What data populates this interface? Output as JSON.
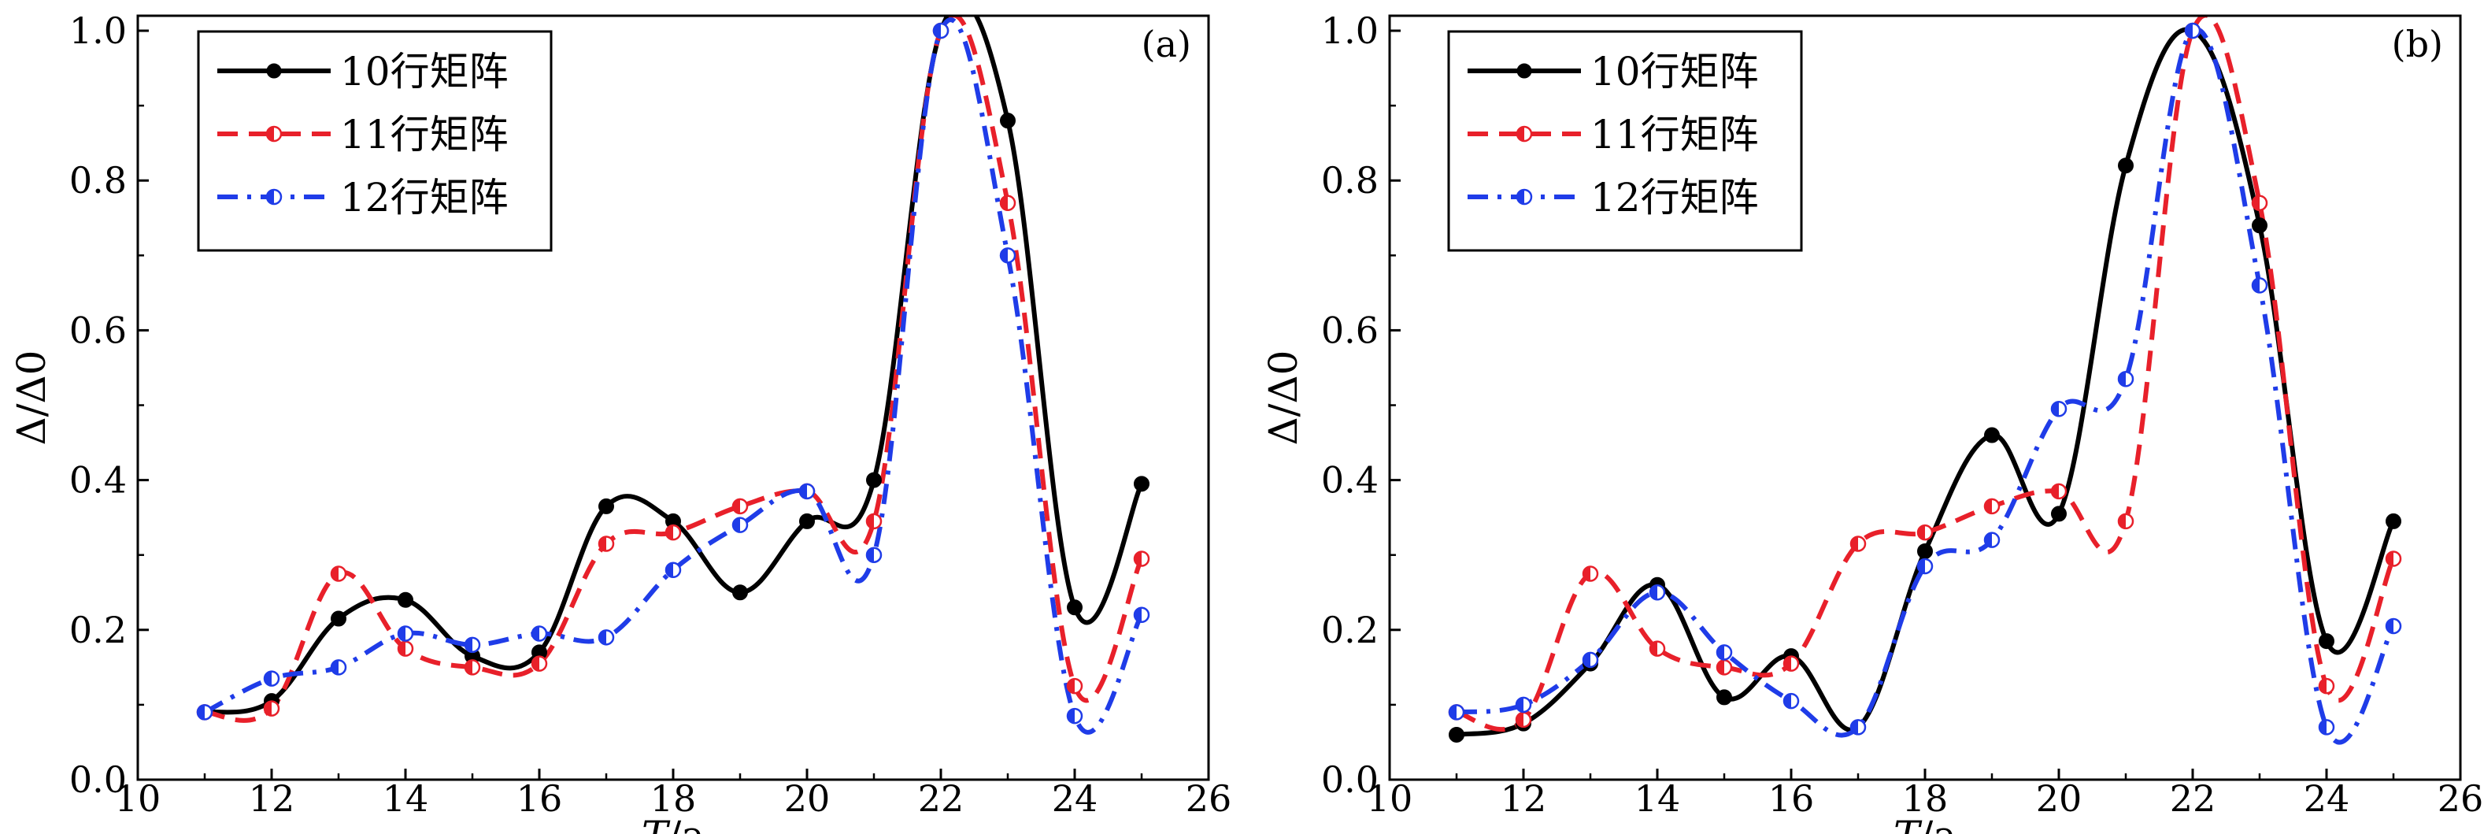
{
  "chart_data": [
    {
      "type": "line",
      "panel_label": "(a)",
      "xlabel_italic": "T",
      "xlabel_unit": "/a",
      "ylabel": "Δ/Δ0",
      "xlim": [
        10,
        26
      ],
      "ylim": [
        0,
        1.02
      ],
      "xticks": [
        10,
        12,
        14,
        16,
        18,
        20,
        22,
        24,
        26
      ],
      "yticks": [
        "0.0",
        "0.2",
        "0.4",
        "0.6",
        "0.8",
        "1.0"
      ],
      "legend_position": "top-left",
      "series": [
        {
          "name": "10行矩阵",
          "color": "#000000",
          "dash": "solid",
          "marker": "filled-circle",
          "x": [
            11,
            12,
            13,
            14,
            15,
            16,
            17,
            18,
            19,
            20,
            21,
            22,
            23,
            24,
            25
          ],
          "values": [
            0.09,
            0.105,
            0.215,
            0.24,
            0.165,
            0.17,
            0.365,
            0.345,
            0.25,
            0.345,
            0.4,
            1.0,
            0.88,
            0.23,
            0.395
          ]
        },
        {
          "name": "11行矩阵",
          "color": "#e8202a",
          "dash": "dash",
          "marker": "half-filled-circle",
          "x": [
            11,
            12,
            13,
            14,
            15,
            16,
            17,
            18,
            19,
            20,
            21,
            22,
            23,
            24,
            25
          ],
          "values": [
            0.09,
            0.095,
            0.275,
            0.175,
            0.15,
            0.155,
            0.315,
            0.33,
            0.365,
            0.385,
            0.345,
            1.0,
            0.77,
            0.125,
            0.295
          ]
        },
        {
          "name": "12行矩阵",
          "color": "#1f3ce8",
          "dash": "dashdot",
          "marker": "half-filled-circle",
          "x": [
            11,
            12,
            13,
            14,
            15,
            16,
            17,
            18,
            19,
            20,
            21,
            22,
            23,
            24,
            25
          ],
          "values": [
            0.09,
            0.135,
            0.15,
            0.195,
            0.18,
            0.195,
            0.19,
            0.28,
            0.34,
            0.385,
            0.3,
            1.0,
            0.7,
            0.085,
            0.22
          ]
        }
      ]
    },
    {
      "type": "line",
      "panel_label": "(b)",
      "xlabel_italic": "T",
      "xlabel_unit": "/a",
      "ylabel": "Δ/Δ0",
      "xlim": [
        10,
        26
      ],
      "ylim": [
        0,
        1.02
      ],
      "xticks": [
        10,
        12,
        14,
        16,
        18,
        20,
        22,
        24,
        26
      ],
      "yticks": [
        "0.0",
        "0.2",
        "0.4",
        "0.6",
        "0.8",
        "1.0"
      ],
      "legend_position": "top-left",
      "series": [
        {
          "name": "10行矩阵",
          "color": "#000000",
          "dash": "solid",
          "marker": "filled-circle",
          "x": [
            11,
            12,
            13,
            14,
            15,
            16,
            17,
            18,
            19,
            20,
            21,
            22,
            23,
            24,
            25
          ],
          "values": [
            0.06,
            0.075,
            0.155,
            0.26,
            0.11,
            0.165,
            0.07,
            0.305,
            0.46,
            0.355,
            0.82,
            1.0,
            0.74,
            0.185,
            0.345
          ]
        },
        {
          "name": "11行矩阵",
          "color": "#e8202a",
          "dash": "dash",
          "marker": "half-filled-circle",
          "x": [
            11,
            12,
            13,
            14,
            15,
            16,
            17,
            18,
            19,
            20,
            21,
            22,
            23,
            24,
            25
          ],
          "values": [
            0.09,
            0.08,
            0.275,
            0.175,
            0.15,
            0.155,
            0.315,
            0.33,
            0.365,
            0.385,
            0.345,
            1.0,
            0.77,
            0.125,
            0.295
          ]
        },
        {
          "name": "12行矩阵",
          "color": "#1f3ce8",
          "dash": "dashdot",
          "marker": "half-filled-circle",
          "x": [
            11,
            12,
            13,
            14,
            15,
            16,
            17,
            18,
            19,
            20,
            21,
            22,
            23,
            24,
            25
          ],
          "values": [
            0.09,
            0.1,
            0.16,
            0.25,
            0.17,
            0.105,
            0.07,
            0.285,
            0.32,
            0.495,
            0.535,
            1.0,
            0.66,
            0.07,
            0.205
          ]
        }
      ]
    }
  ]
}
